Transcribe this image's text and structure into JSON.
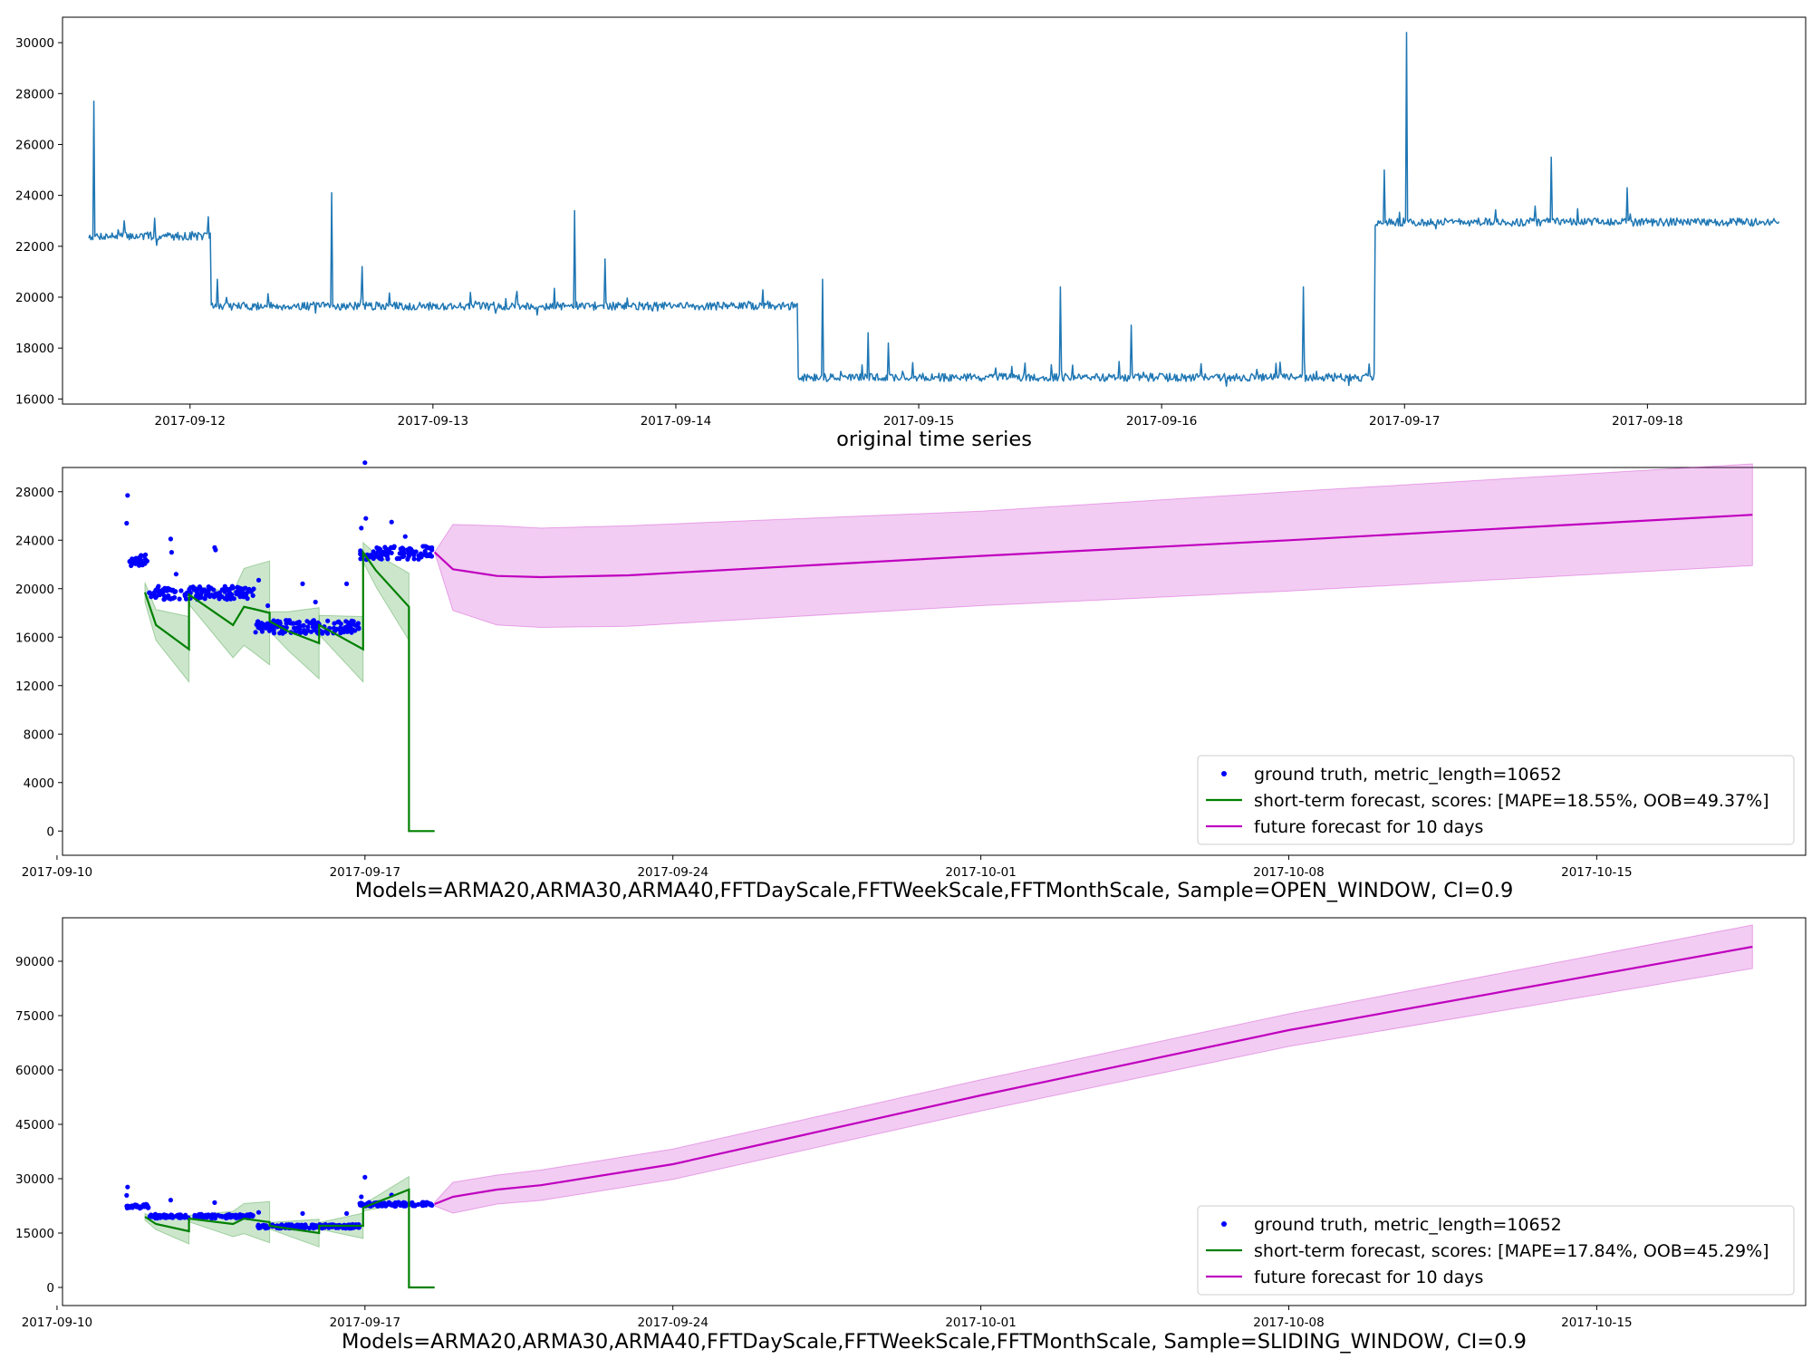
{
  "chart_data": [
    {
      "type": "line",
      "title": "original time series",
      "x_start": "2017-09-11T14:00",
      "x_end": "2017-09-18T13:00",
      "xlim": [
        "2017-09-11T11:24",
        "2017-09-18T15:38"
      ],
      "ylim": [
        15800,
        31000
      ],
      "x_tick_labels": [
        "2017-09-12",
        "2017-09-13",
        "2017-09-14",
        "2017-09-15",
        "2017-09-16",
        "2017-09-17",
        "2017-09-18"
      ],
      "y_ticks": [
        16000,
        18000,
        20000,
        22000,
        24000,
        26000,
        28000,
        30000
      ],
      "grid": false,
      "color": "#1f77b4",
      "levels": [
        {
          "from": "2017-09-11T14:00",
          "to": "2017-09-12T02:00",
          "value": 22400
        },
        {
          "from": "2017-09-12T02:00",
          "to": "2017-09-14T12:00",
          "value": 19650
        },
        {
          "from": "2017-09-14T12:00",
          "to": "2017-09-16T21:00",
          "value": 16850
        },
        {
          "from": "2017-09-16T21:00",
          "to": "2017-09-18T13:00",
          "value": 22950
        }
      ],
      "spikes": [
        {
          "x": "2017-09-11T14:30",
          "y": 27700
        },
        {
          "x": "2017-09-11T17:30",
          "y": 23000
        },
        {
          "x": "2017-09-11T20:30",
          "y": 23100
        },
        {
          "x": "2017-09-12T02:40",
          "y": 20700
        },
        {
          "x": "2017-09-12T14:00",
          "y": 24100
        },
        {
          "x": "2017-09-12T17:00",
          "y": 21200
        },
        {
          "x": "2017-09-13T14:00",
          "y": 23400
        },
        {
          "x": "2017-09-13T17:00",
          "y": 21500
        },
        {
          "x": "2017-09-14T14:30",
          "y": 20700
        },
        {
          "x": "2017-09-14T19:00",
          "y": 18600
        },
        {
          "x": "2017-09-14T21:00",
          "y": 18200
        },
        {
          "x": "2017-09-15T14:00",
          "y": 20400
        },
        {
          "x": "2017-09-15T21:00",
          "y": 18900
        },
        {
          "x": "2017-09-16T14:00",
          "y": 20400
        },
        {
          "x": "2017-09-16T22:00",
          "y": 25000
        },
        {
          "x": "2017-09-17T00:10",
          "y": 30400
        },
        {
          "x": "2017-09-17T14:30",
          "y": 25500
        },
        {
          "x": "2017-09-17T22:00",
          "y": 24300
        }
      ]
    },
    {
      "type": "line",
      "title": "Models=ARMA20,ARMA30,ARMA40,FFTDayScale,FFTWeekScale,FFTMonthScale, Sample=OPEN_WINDOW, CI=0.9",
      "xlim": [
        "2017-09-10T03:00",
        "2017-10-19T18:00"
      ],
      "ylim": [
        -2000,
        30000
      ],
      "x_tick_labels": [
        "2017-09-10",
        "2017-09-17",
        "2017-09-24",
        "2017-10-01",
        "2017-10-08",
        "2017-10-15"
      ],
      "y_ticks": [
        0,
        4000,
        8000,
        12000,
        16000,
        20000,
        24000,
        28000
      ],
      "grid": false,
      "legend_position": "lower right",
      "series": [
        {
          "name": "ground truth, metric_length=10652",
          "kind": "scatter",
          "color": "#0000ff",
          "bands": [
            {
              "from": "2017-09-11T14:00",
              "to": "2017-09-12T02:00",
              "center": 22400
            },
            {
              "from": "2017-09-12T02:00",
              "to": "2017-09-14T12:00",
              "center": 19650
            },
            {
              "from": "2017-09-14T12:00",
              "to": "2017-09-16T21:00",
              "center": 16850
            },
            {
              "from": "2017-09-16T21:00",
              "to": "2017-09-18T13:00",
              "center": 22950
            }
          ],
          "outliers": [
            {
              "x": "2017-09-11T14:30",
              "y": 27700
            },
            {
              "x": "2017-09-11T14:00",
              "y": 25400
            },
            {
              "x": "2017-09-12T14:00",
              "y": 24100
            },
            {
              "x": "2017-09-12T14:30",
              "y": 23000
            },
            {
              "x": "2017-09-13T14:00",
              "y": 23400
            },
            {
              "x": "2017-09-13T14:30",
              "y": 23200
            },
            {
              "x": "2017-09-12T17:00",
              "y": 21200
            },
            {
              "x": "2017-09-14T14:00",
              "y": 20700
            },
            {
              "x": "2017-09-14T19:00",
              "y": 18600
            },
            {
              "x": "2017-09-15T14:00",
              "y": 20400
            },
            {
              "x": "2017-09-16T14:00",
              "y": 20400
            },
            {
              "x": "2017-09-15T21:00",
              "y": 18900
            },
            {
              "x": "2017-09-16T22:00",
              "y": 25000
            },
            {
              "x": "2017-09-17T00:00",
              "y": 30400
            },
            {
              "x": "2017-09-17T00:30",
              "y": 25800
            },
            {
              "x": "2017-09-17T14:30",
              "y": 25500
            },
            {
              "x": "2017-09-17T22:00",
              "y": 24300
            }
          ]
        },
        {
          "name": "short-term forecast, scores: [MAPE=18.55%, OOB=49.37%]",
          "kind": "line",
          "color": "#008000",
          "points": [
            {
              "x": "2017-09-12T00:00",
              "y": 19700
            },
            {
              "x": "2017-09-12T06:00",
              "y": 17000
            },
            {
              "x": "2017-09-13T00:00",
              "y": 15000
            },
            {
              "x": "2017-09-13T00:01",
              "y": 19500
            },
            {
              "x": "2017-09-14T00:00",
              "y": 17000
            },
            {
              "x": "2017-09-14T06:00",
              "y": 18500
            },
            {
              "x": "2017-09-14T12:00",
              "y": 18300
            },
            {
              "x": "2017-09-14T20:00",
              "y": 18000
            },
            {
              "x": "2017-09-14T20:01",
              "y": 17300
            },
            {
              "x": "2017-09-15T06:00",
              "y": 16500
            },
            {
              "x": "2017-09-15T23:00",
              "y": 15500
            },
            {
              "x": "2017-09-15T23:01",
              "y": 17000
            },
            {
              "x": "2017-09-16T23:00",
              "y": 15000
            },
            {
              "x": "2017-09-16T23:01",
              "y": 23000
            },
            {
              "x": "2017-09-17T06:00",
              "y": 21500
            },
            {
              "x": "2017-09-18T00:00",
              "y": 18500
            },
            {
              "x": "2017-09-18T00:01",
              "y": 0
            },
            {
              "x": "2017-09-18T14:00",
              "y": 0
            }
          ],
          "ci_band": {
            "color": "#008000",
            "halfwidth_start": 800,
            "halfwidth_growth": 1900
          }
        },
        {
          "name": "future forecast for 10 days",
          "kind": "line",
          "color": "#bf00bf",
          "points": [
            {
              "x": "2017-09-18T14:00",
              "y": 23000
            },
            {
              "x": "2017-09-19T00:00",
              "y": 21600
            },
            {
              "x": "2017-09-20T00:00",
              "y": 21050
            },
            {
              "x": "2017-09-21T00:00",
              "y": 20950
            },
            {
              "x": "2017-09-23T00:00",
              "y": 21100
            },
            {
              "x": "2017-10-01T00:00",
              "y": 22700
            },
            {
              "x": "2017-10-08T00:00",
              "y": 24000
            },
            {
              "x": "2017-10-18T13:00",
              "y": 26100
            }
          ],
          "ci_band": {
            "color": "#bf00bf",
            "upper": [
              23000,
              25300,
              25200,
              25000,
              25200,
              26400,
              28000,
              30300
            ],
            "lower": [
              23000,
              18200,
              17000,
              16800,
              16900,
              18600,
              19800,
              21900
            ]
          }
        }
      ]
    },
    {
      "type": "line",
      "title": "Models=ARMA20,ARMA30,ARMA40,FFTDayScale,FFTWeekScale,FFTMonthScale, Sample=SLIDING_WINDOW, CI=0.9",
      "xlim": [
        "2017-09-10T03:00",
        "2017-10-19T18:00"
      ],
      "ylim": [
        -5000,
        102000
      ],
      "x_tick_labels": [
        "2017-09-10",
        "2017-09-17",
        "2017-09-24",
        "2017-10-01",
        "2017-10-08",
        "2017-10-15"
      ],
      "y_ticks": [
        0,
        15000,
        30000,
        45000,
        60000,
        75000,
        90000
      ],
      "grid": false,
      "legend_position": "lower right",
      "series": [
        {
          "name": "ground truth, metric_length=10652",
          "kind": "scatter",
          "color": "#0000ff",
          "bands": [
            {
              "from": "2017-09-11T14:00",
              "to": "2017-09-12T02:00",
              "center": 22400
            },
            {
              "from": "2017-09-12T02:00",
              "to": "2017-09-14T12:00",
              "center": 19650
            },
            {
              "from": "2017-09-14T12:00",
              "to": "2017-09-16T21:00",
              "center": 16850
            },
            {
              "from": "2017-09-16T21:00",
              "to": "2017-09-18T13:00",
              "center": 22950
            }
          ],
          "outliers": [
            {
              "x": "2017-09-11T14:30",
              "y": 27700
            },
            {
              "x": "2017-09-11T14:00",
              "y": 25400
            },
            {
              "x": "2017-09-12T14:00",
              "y": 24100
            },
            {
              "x": "2017-09-13T14:00",
              "y": 23400
            },
            {
              "x": "2017-09-14T14:00",
              "y": 20700
            },
            {
              "x": "2017-09-15T14:00",
              "y": 20400
            },
            {
              "x": "2017-09-16T14:00",
              "y": 20400
            },
            {
              "x": "2017-09-16T22:00",
              "y": 25000
            },
            {
              "x": "2017-09-17T00:00",
              "y": 30400
            },
            {
              "x": "2017-09-17T14:30",
              "y": 25500
            }
          ]
        },
        {
          "name": "short-term forecast, scores: [MAPE=17.84%, OOB=45.29%]",
          "kind": "line",
          "color": "#008000",
          "points": [
            {
              "x": "2017-09-12T00:00",
              "y": 19500
            },
            {
              "x": "2017-09-12T06:00",
              "y": 17500
            },
            {
              "x": "2017-09-13T00:00",
              "y": 15500
            },
            {
              "x": "2017-09-13T00:01",
              "y": 19000
            },
            {
              "x": "2017-09-14T00:00",
              "y": 17500
            },
            {
              "x": "2017-09-14T06:00",
              "y": 19000
            },
            {
              "x": "2017-09-14T20:00",
              "y": 18000
            },
            {
              "x": "2017-09-14T20:01",
              "y": 17000
            },
            {
              "x": "2017-09-15T23:00",
              "y": 15000
            },
            {
              "x": "2017-09-15T23:01",
              "y": 17000
            },
            {
              "x": "2017-09-16T23:00",
              "y": 17000
            },
            {
              "x": "2017-09-16T23:01",
              "y": 22000
            },
            {
              "x": "2017-09-18T00:00",
              "y": 27000
            },
            {
              "x": "2017-09-18T00:01",
              "y": 0
            },
            {
              "x": "2017-09-18T14:00",
              "y": 0
            }
          ],
          "ci_band": {
            "color": "#008000",
            "halfwidth_start": 900,
            "halfwidth_growth": 2600
          }
        },
        {
          "name": "future forecast for 10 days",
          "kind": "line",
          "color": "#bf00bf",
          "points": [
            {
              "x": "2017-09-18T14:00",
              "y": 23000
            },
            {
              "x": "2017-09-19T00:00",
              "y": 25000
            },
            {
              "x": "2017-09-20T00:00",
              "y": 27000
            },
            {
              "x": "2017-09-21T00:00",
              "y": 28200
            },
            {
              "x": "2017-09-24T00:00",
              "y": 34000
            },
            {
              "x": "2017-10-01T00:00",
              "y": 53000
            },
            {
              "x": "2017-10-08T00:00",
              "y": 71000
            },
            {
              "x": "2017-10-18T13:00",
              "y": 94000
            }
          ],
          "ci_band": {
            "color": "#bf00bf",
            "upper": [
              23500,
              29000,
              31000,
              32400,
              38200,
              57300,
              75500,
              100000
            ],
            "lower": [
              22500,
              20500,
              23000,
              24000,
              29800,
              48700,
              66500,
              88000
            ]
          }
        }
      ]
    }
  ]
}
